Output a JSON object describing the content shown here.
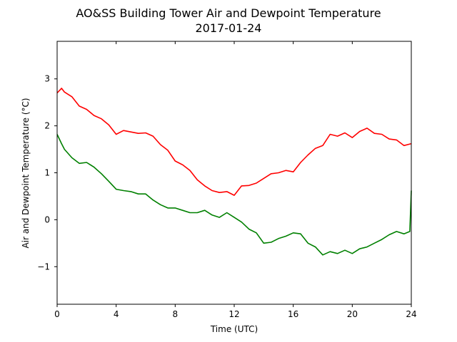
{
  "chart_data": {
    "type": "line",
    "title": "AO&SS Building Tower Air and Dewpoint Temperature",
    "subtitle": "2017-01-24",
    "xlabel": "Time (UTC)",
    "ylabel": "Air and Dewpoint Temperature (°C)",
    "xlim": [
      0,
      24
    ],
    "ylim": [
      -1.8,
      3.8
    ],
    "xticks": [
      0,
      4,
      8,
      12,
      16,
      20,
      24
    ],
    "yticks": [
      -1,
      0,
      1,
      2,
      3
    ],
    "grid": false,
    "series": [
      {
        "color": "#ff0000",
        "x": [
          0,
          0.3,
          0.5,
          1,
          1.5,
          2,
          2.5,
          3,
          3.5,
          4,
          4.5,
          5,
          5.5,
          6,
          6.5,
          7,
          7.5,
          8,
          8.5,
          9,
          9.5,
          10,
          10.5,
          11,
          11.5,
          12,
          12.5,
          13,
          13.5,
          14,
          14.5,
          15,
          15.5,
          16,
          16.5,
          17,
          17.5,
          18,
          18.5,
          19,
          19.5,
          20,
          20.5,
          21,
          21.5,
          22,
          22.5,
          23,
          23.5,
          24
        ],
        "y": [
          2.7,
          2.8,
          2.72,
          2.62,
          2.42,
          2.35,
          2.22,
          2.15,
          2.02,
          1.82,
          1.9,
          1.87,
          1.84,
          1.85,
          1.78,
          1.6,
          1.48,
          1.25,
          1.17,
          1.05,
          0.85,
          0.72,
          0.62,
          0.58,
          0.6,
          0.52,
          0.72,
          0.73,
          0.78,
          0.88,
          0.98,
          1.0,
          1.05,
          1.02,
          1.22,
          1.38,
          1.52,
          1.58,
          1.82,
          1.78,
          1.85,
          1.75,
          1.88,
          1.95,
          1.84,
          1.82,
          1.72,
          1.7,
          1.58,
          1.62
        ]
      },
      {
        "color": "#008000",
        "x": [
          0,
          0.3,
          0.5,
          1,
          1.5,
          2,
          2.5,
          3,
          3.5,
          4,
          4.5,
          5,
          5.5,
          6,
          6.5,
          7,
          7.5,
          8,
          8.5,
          9,
          9.5,
          10,
          10.5,
          11,
          11.5,
          12,
          12.5,
          13,
          13.5,
          14,
          14.5,
          15,
          15.5,
          16,
          16.5,
          17,
          17.5,
          18,
          18.5,
          19,
          19.5,
          20,
          20.5,
          21,
          21.5,
          22,
          22.5,
          23,
          23.5,
          23.9,
          24
        ],
        "y": [
          1.82,
          1.62,
          1.5,
          1.32,
          1.2,
          1.22,
          1.12,
          0.98,
          0.82,
          0.65,
          0.62,
          0.6,
          0.55,
          0.55,
          0.42,
          0.32,
          0.25,
          0.25,
          0.2,
          0.15,
          0.15,
          0.2,
          0.1,
          0.05,
          0.15,
          0.05,
          -0.05,
          -0.2,
          -0.28,
          -0.5,
          -0.48,
          -0.4,
          -0.35,
          -0.28,
          -0.3,
          -0.5,
          -0.58,
          -0.75,
          -0.68,
          -0.72,
          -0.65,
          -0.72,
          -0.62,
          -0.58,
          -0.5,
          -0.42,
          -0.32,
          -0.25,
          -0.3,
          -0.25,
          0.62
        ]
      }
    ]
  }
}
